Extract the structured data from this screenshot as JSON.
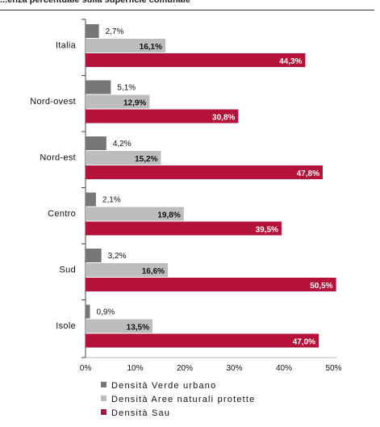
{
  "header": {
    "title": "...enza percentuale sulla superficie comunale"
  },
  "chart_data": {
    "type": "bar",
    "orientation": "horizontal",
    "title": "...enza percentuale sulla superficie comunale",
    "categories": [
      "Italia",
      "Nord-ovest",
      "Nord-est",
      "Centro",
      "Sud",
      "Isole"
    ],
    "series": [
      {
        "name": "Densità Verde urbano",
        "color": "#777777",
        "values": [
          2.7,
          5.1,
          4.2,
          2.1,
          3.2,
          0.9
        ],
        "labels": [
          "2,7%",
          "5,1%",
          "4,2%",
          "2,1%",
          "3,2%",
          "0,9%"
        ]
      },
      {
        "name": "Densità Aree naturali protette",
        "color": "#bdbdbd",
        "values": [
          16.1,
          12.9,
          15.2,
          19.8,
          16.6,
          13.5
        ],
        "labels": [
          "16,1%",
          "12,9%",
          "15,2%",
          "19,8%",
          "16,6%",
          "13,5%"
        ]
      },
      {
        "name": "Densità Sau",
        "color": "#b5123a",
        "values": [
          44.3,
          30.8,
          47.8,
          39.5,
          50.5,
          47.0
        ],
        "labels": [
          "44,3%",
          "30,8%",
          "47,8%",
          "39,5%",
          "50,5%",
          "47,0%"
        ]
      }
    ],
    "x_ticks": [
      "0%",
      "10%",
      "20%",
      "30%",
      "40%",
      "50%"
    ],
    "xlim": [
      0,
      50
    ],
    "grid": false,
    "legend_position": "bottom-left"
  }
}
